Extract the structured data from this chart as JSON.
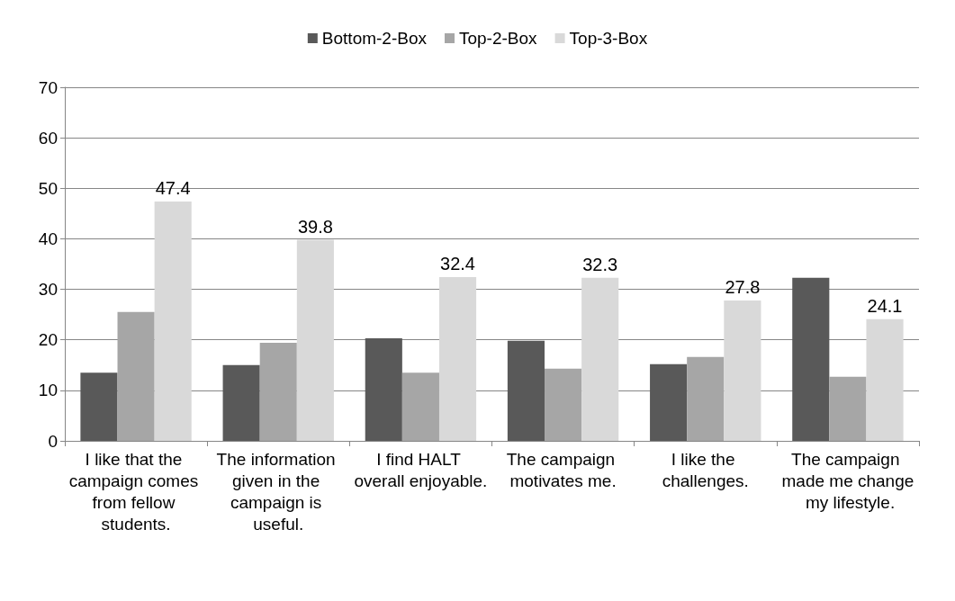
{
  "chart_data": {
    "type": "bar",
    "categories": [
      "I like that the campaign comes from fellow students.",
      "The information given in the campaign is useful.",
      "I find HALT overall enjoyable.",
      "The campaign motivates me.",
      "I like the challenges.",
      "The campaign made me change my lifestyle."
    ],
    "series": [
      {
        "name": "Bottom-2-Box",
        "color": "#595959",
        "values": [
          13.5,
          15.0,
          20.3,
          19.8,
          15.2,
          32.3
        ]
      },
      {
        "name": "Top-2-Box",
        "color": "#a6a6a6",
        "values": [
          25.5,
          19.4,
          13.5,
          14.3,
          16.6,
          12.7
        ]
      },
      {
        "name": "Top-3-Box",
        "color": "#d9d9d9",
        "values": [
          47.4,
          39.8,
          32.4,
          32.3,
          27.8,
          24.1
        ],
        "value_labels": [
          "47.4",
          "39.8",
          "32.4",
          "32.3",
          "27.8",
          "24.1"
        ]
      }
    ],
    "ylim": [
      0,
      70
    ],
    "yticks": [
      0,
      10,
      20,
      30,
      40,
      50,
      60,
      70
    ],
    "grid": "y",
    "legend": "top"
  }
}
